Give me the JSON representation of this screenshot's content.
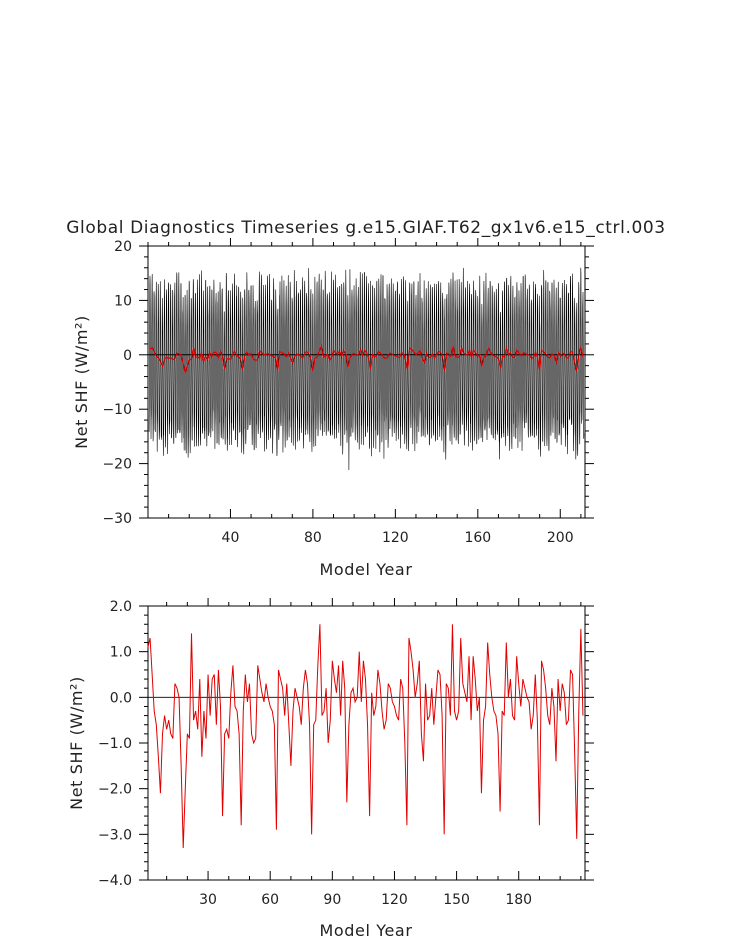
{
  "chart_data": [
    {
      "type": "line",
      "title": "Global Diagnostics Timeseries g.e15.GIAF.T62_gx1v6.e15_ctrl.003",
      "xlabel": "Model Year",
      "ylabel": "Net SHF (W/m²)",
      "xlim": [
        0,
        212
      ],
      "ylim": [
        -30,
        20
      ],
      "xticks": [
        40,
        80,
        120,
        160,
        200
      ],
      "yticks": [
        -30,
        -20,
        -10,
        0,
        10,
        20
      ],
      "xtick_labels": [
        "40",
        "80",
        "120",
        "160",
        "200"
      ],
      "ytick_labels": [
        "−30",
        "−20",
        "−10",
        "0",
        "10",
        "20"
      ],
      "zero_line": true,
      "grid": false,
      "series": [
        {
          "color": "#000000",
          "description_values": "monthly values oscillating seasonally between about -25 and 17",
          "monthly_range": [
            -25,
            17
          ]
        },
        {
          "color": "#e00000",
          "source": "annual",
          "values_ref": "same as annual series in panel 2"
        }
      ]
    },
    {
      "type": "line",
      "xlabel": "Model Year",
      "ylabel": "Net SHF (W/m²)",
      "xlim": [
        1,
        212
      ],
      "ylim": [
        -4,
        2
      ],
      "xticks": [
        30,
        60,
        90,
        120,
        150,
        180
      ],
      "yticks": [
        -4,
        -3,
        -2,
        -1,
        0,
        1,
        2
      ],
      "xtick_labels": [
        "30",
        "60",
        "90",
        "120",
        "150",
        "180"
      ],
      "ytick_labels": [
        "−4.0",
        "−3.0",
        "−2.0",
        "−1.0",
        "0.0",
        "1.0",
        "2.0"
      ],
      "zero_line": true,
      "grid": false,
      "series": [
        {
          "color": "#e00000",
          "x_start": 1,
          "values": [
            1.1,
            1.3,
            0.5,
            -0.3,
            -0.6,
            -1.3,
            -2.1,
            -0.8,
            -0.4,
            -0.7,
            -0.5,
            -0.8,
            -0.9,
            0.3,
            0.2,
            0.0,
            -1.5,
            -3.3,
            -2.0,
            -0.8,
            -0.9,
            1.4,
            -0.5,
            -0.3,
            -0.7,
            0.4,
            -1.3,
            -0.3,
            -0.9,
            0.5,
            -0.4,
            0.4,
            0.5,
            -0.6,
            0.6,
            -0.2,
            -2.6,
            -0.8,
            -0.7,
            -0.9,
            0.1,
            0.7,
            -0.2,
            -0.3,
            -0.8,
            -2.8,
            -0.3,
            0.5,
            -0.1,
            0.3,
            -0.8,
            -1.0,
            -0.9,
            0.7,
            0.4,
            0.1,
            -0.1,
            0.3,
            0.0,
            -0.2,
            -0.3,
            -0.6,
            -2.9,
            0.6,
            0.4,
            0.2,
            -0.4,
            0.3,
            -0.6,
            -1.5,
            -0.3,
            0.2,
            0.0,
            -0.2,
            -0.6,
            0.2,
            0.6,
            0.3,
            -0.6,
            -3.0,
            -0.6,
            -0.5,
            0.7,
            1.6,
            -0.4,
            -0.3,
            0.2,
            -1.0,
            -0.5,
            0.8,
            0.4,
            0.1,
            0.7,
            -0.4,
            0.8,
            0.2,
            -2.3,
            -0.6,
            0.1,
            0.2,
            -0.1,
            0.0,
            1.0,
            -0.1,
            0.8,
            0.4,
            -0.6,
            -2.6,
            0.1,
            -0.4,
            -0.2,
            0.6,
            0.3,
            -0.3,
            -0.7,
            -0.5,
            0.3,
            0.2,
            -0.1,
            -0.2,
            -0.4,
            -0.5,
            0.4,
            0.2,
            -1.0,
            -2.8,
            1.3,
            1.0,
            0.6,
            0.0,
            0.3,
            0.8,
            -0.8,
            -1.4,
            0.3,
            -0.5,
            -0.4,
            0.2,
            -0.6,
            0.0,
            0.6,
            0.5,
            -0.4,
            -3.0,
            0.3,
            0.2,
            -0.4,
            1.6,
            -0.3,
            -0.5,
            -0.3,
            1.3,
            0.3,
            0.1,
            -0.1,
            0.9,
            -0.5,
            0.9,
            0.4,
            -0.3,
            0.0,
            -2.1,
            -0.5,
            -0.2,
            1.2,
            0.5,
            0.0,
            -0.3,
            -0.4,
            -0.8,
            -2.5,
            -0.3,
            -0.4,
            1.2,
            0.0,
            0.4,
            -0.4,
            -0.5,
            0.9,
            0.3,
            -0.2,
            0.4,
            0.2,
            0.0,
            -0.1,
            -0.7,
            -0.4,
            0.5,
            -0.5,
            -2.8,
            0.8,
            0.6,
            0.2,
            -0.4,
            -0.6,
            0.2,
            -0.2,
            -1.4,
            0.4,
            -0.3,
            0.3,
            0.1,
            -0.6,
            -0.5,
            0.6,
            0.5,
            -1.2,
            -3.1,
            -0.3,
            1.5,
            -0.4
          ]
        }
      ]
    }
  ]
}
